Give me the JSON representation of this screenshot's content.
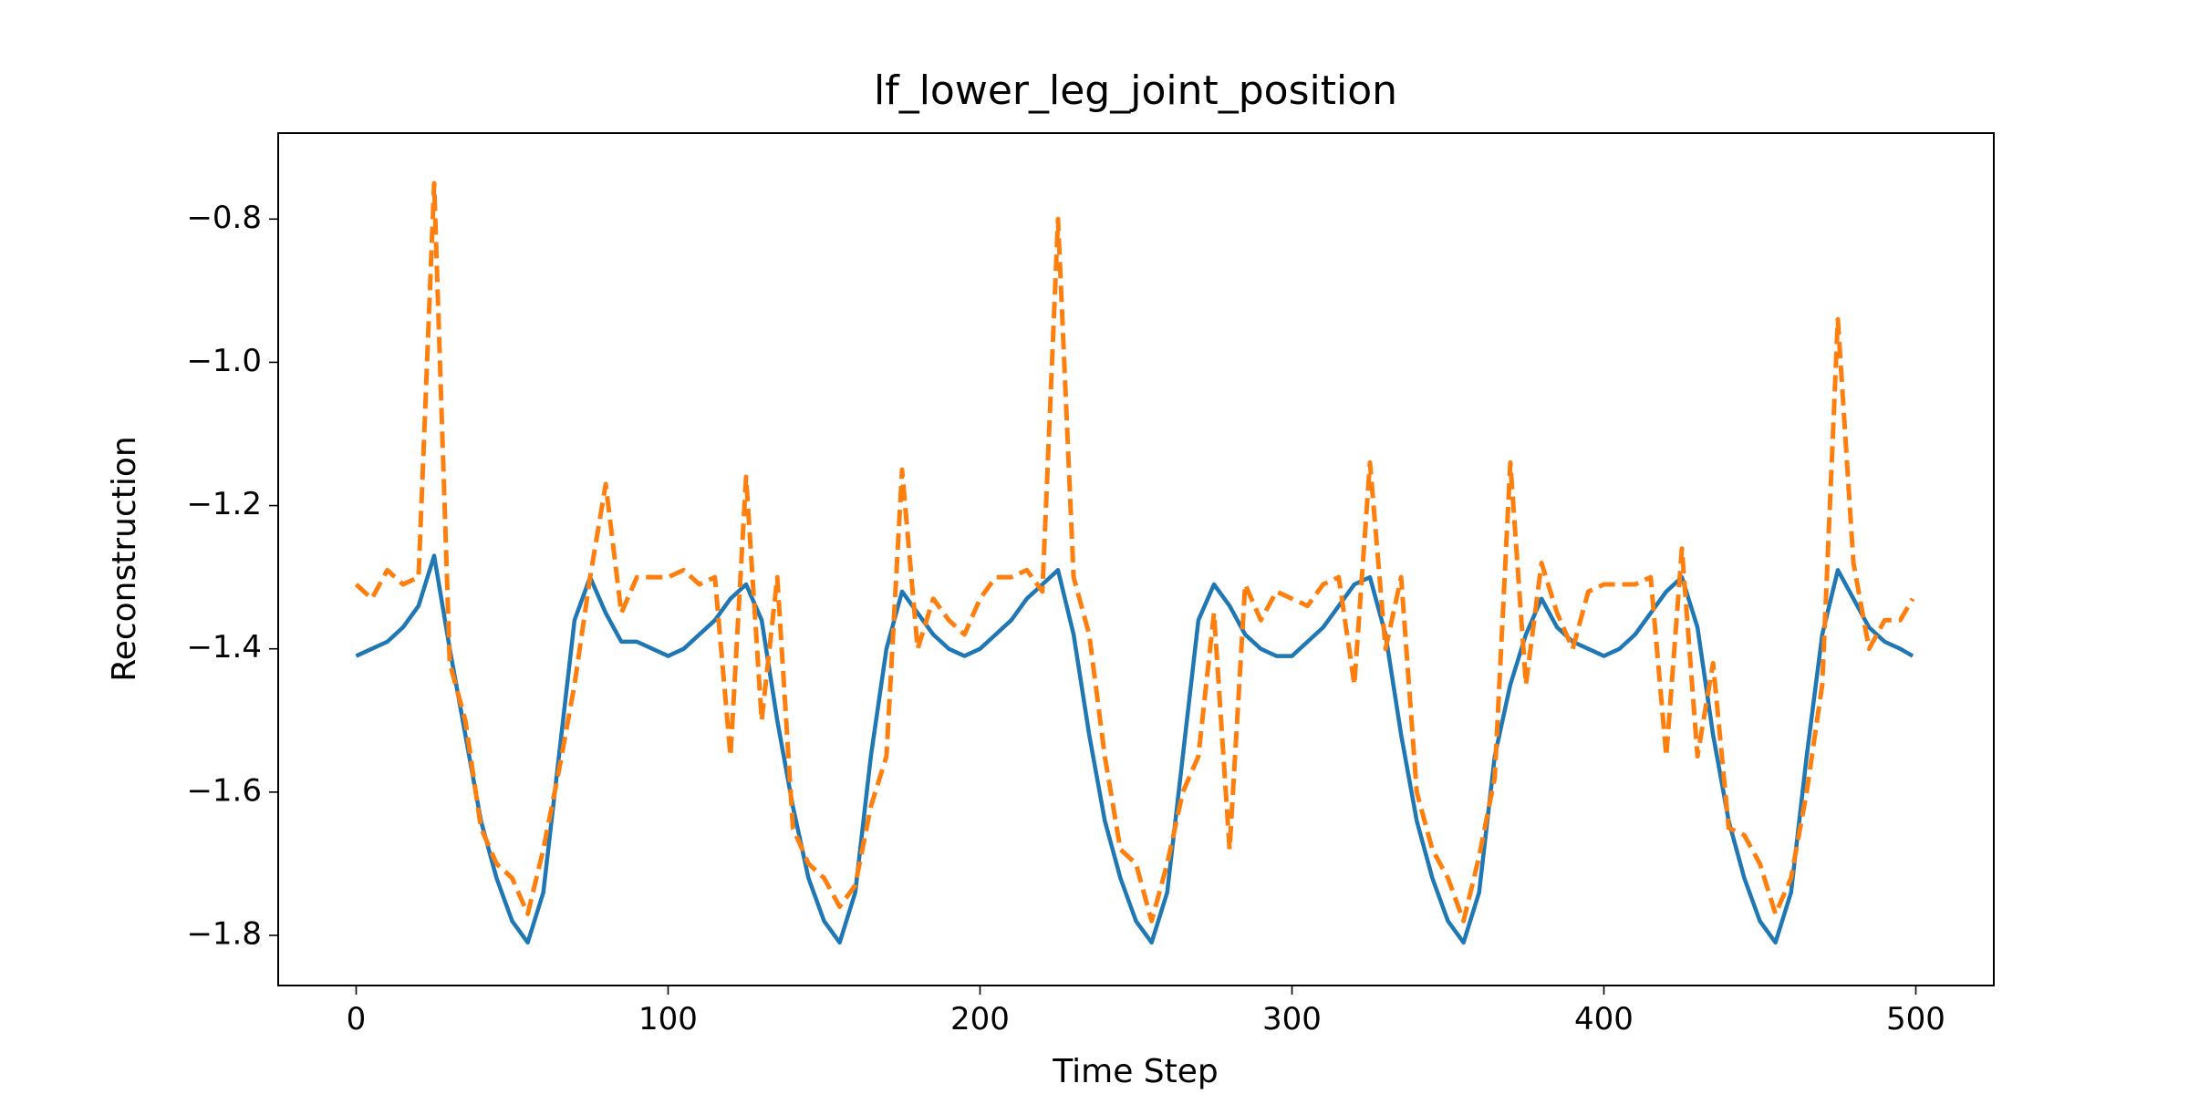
{
  "chart_data": {
    "type": "line",
    "title": "lf_lower_leg_joint_position",
    "xlabel": "Time Step",
    "ylabel": "Reconstruction",
    "xlim": [
      -25,
      525
    ],
    "ylim": [
      -1.87,
      -0.68
    ],
    "xticks": [
      0,
      100,
      200,
      300,
      400,
      500
    ],
    "yticks": [
      {
        "value": -1.8,
        "label": "−1.8"
      },
      {
        "value": -1.6,
        "label": "−1.6"
      },
      {
        "value": -1.4,
        "label": "−1.4"
      },
      {
        "value": -1.2,
        "label": "−1.2"
      },
      {
        "value": -1.0,
        "label": "−1.0"
      },
      {
        "value": -0.8,
        "label": "−0.8"
      }
    ],
    "grid": false,
    "x": [
      0,
      5,
      10,
      15,
      20,
      25,
      30,
      35,
      40,
      45,
      50,
      55,
      60,
      65,
      70,
      75,
      80,
      85,
      90,
      95,
      100,
      105,
      110,
      115,
      120,
      125,
      130,
      135,
      140,
      145,
      150,
      155,
      160,
      165,
      170,
      175,
      180,
      185,
      190,
      195,
      200,
      205,
      210,
      215,
      220,
      225,
      230,
      235,
      240,
      245,
      250,
      255,
      260,
      265,
      270,
      275,
      280,
      285,
      290,
      295,
      300,
      305,
      310,
      315,
      320,
      325,
      330,
      335,
      340,
      345,
      350,
      355,
      360,
      365,
      370,
      375,
      380,
      385,
      390,
      395,
      400,
      405,
      410,
      415,
      420,
      425,
      430,
      435,
      440,
      445,
      450,
      455,
      460,
      465,
      470,
      475,
      480,
      485,
      490,
      495,
      499
    ],
    "series": [
      {
        "color": "#1f77b4",
        "linestyle": "solid",
        "values": [
          -1.41,
          -1.4,
          -1.39,
          -1.37,
          -1.34,
          -1.27,
          -1.4,
          -1.52,
          -1.64,
          -1.72,
          -1.78,
          -1.81,
          -1.74,
          -1.55,
          -1.36,
          -1.3,
          -1.35,
          -1.39,
          -1.39,
          -1.4,
          -1.41,
          -1.4,
          -1.38,
          -1.36,
          -1.33,
          -1.31,
          -1.36,
          -1.5,
          -1.62,
          -1.72,
          -1.78,
          -1.81,
          -1.74,
          -1.55,
          -1.4,
          -1.32,
          -1.35,
          -1.38,
          -1.4,
          -1.41,
          -1.4,
          -1.38,
          -1.36,
          -1.33,
          -1.31,
          -1.29,
          -1.38,
          -1.52,
          -1.64,
          -1.72,
          -1.78,
          -1.81,
          -1.74,
          -1.55,
          -1.36,
          -1.31,
          -1.34,
          -1.38,
          -1.4,
          -1.41,
          -1.41,
          -1.39,
          -1.37,
          -1.34,
          -1.31,
          -1.3,
          -1.38,
          -1.52,
          -1.64,
          -1.72,
          -1.78,
          -1.81,
          -1.74,
          -1.55,
          -1.45,
          -1.38,
          -1.33,
          -1.37,
          -1.39,
          -1.4,
          -1.41,
          -1.4,
          -1.38,
          -1.35,
          -1.32,
          -1.3,
          -1.37,
          -1.52,
          -1.64,
          -1.72,
          -1.78,
          -1.81,
          -1.74,
          -1.55,
          -1.38,
          -1.29,
          -1.33,
          -1.37,
          -1.39,
          -1.4,
          -1.41
        ]
      },
      {
        "color": "#ff7f0e",
        "linestyle": "dashed",
        "values": [
          -1.31,
          -1.33,
          -1.29,
          -1.31,
          -1.3,
          -0.75,
          -1.42,
          -1.5,
          -1.65,
          -1.7,
          -1.72,
          -1.77,
          -1.68,
          -1.57,
          -1.45,
          -1.3,
          -1.17,
          -1.35,
          -1.3,
          -1.3,
          -1.3,
          -1.29,
          -1.31,
          -1.3,
          -1.55,
          -1.16,
          -1.5,
          -1.3,
          -1.65,
          -1.7,
          -1.72,
          -1.76,
          -1.73,
          -1.62,
          -1.55,
          -1.15,
          -1.4,
          -1.33,
          -1.36,
          -1.38,
          -1.33,
          -1.3,
          -1.3,
          -1.29,
          -1.32,
          -0.8,
          -1.3,
          -1.38,
          -1.55,
          -1.68,
          -1.7,
          -1.78,
          -1.7,
          -1.6,
          -1.55,
          -1.35,
          -1.68,
          -1.31,
          -1.36,
          -1.32,
          -1.33,
          -1.34,
          -1.31,
          -1.3,
          -1.45,
          -1.14,
          -1.4,
          -1.3,
          -1.6,
          -1.68,
          -1.72,
          -1.78,
          -1.69,
          -1.58,
          -1.14,
          -1.45,
          -1.28,
          -1.35,
          -1.4,
          -1.32,
          -1.31,
          -1.31,
          -1.31,
          -1.3,
          -1.55,
          -1.26,
          -1.55,
          -1.42,
          -1.65,
          -1.66,
          -1.7,
          -1.77,
          -1.72,
          -1.6,
          -1.45,
          -0.94,
          -1.28,
          -1.4,
          -1.36,
          -1.36,
          -1.33
        ]
      }
    ]
  }
}
